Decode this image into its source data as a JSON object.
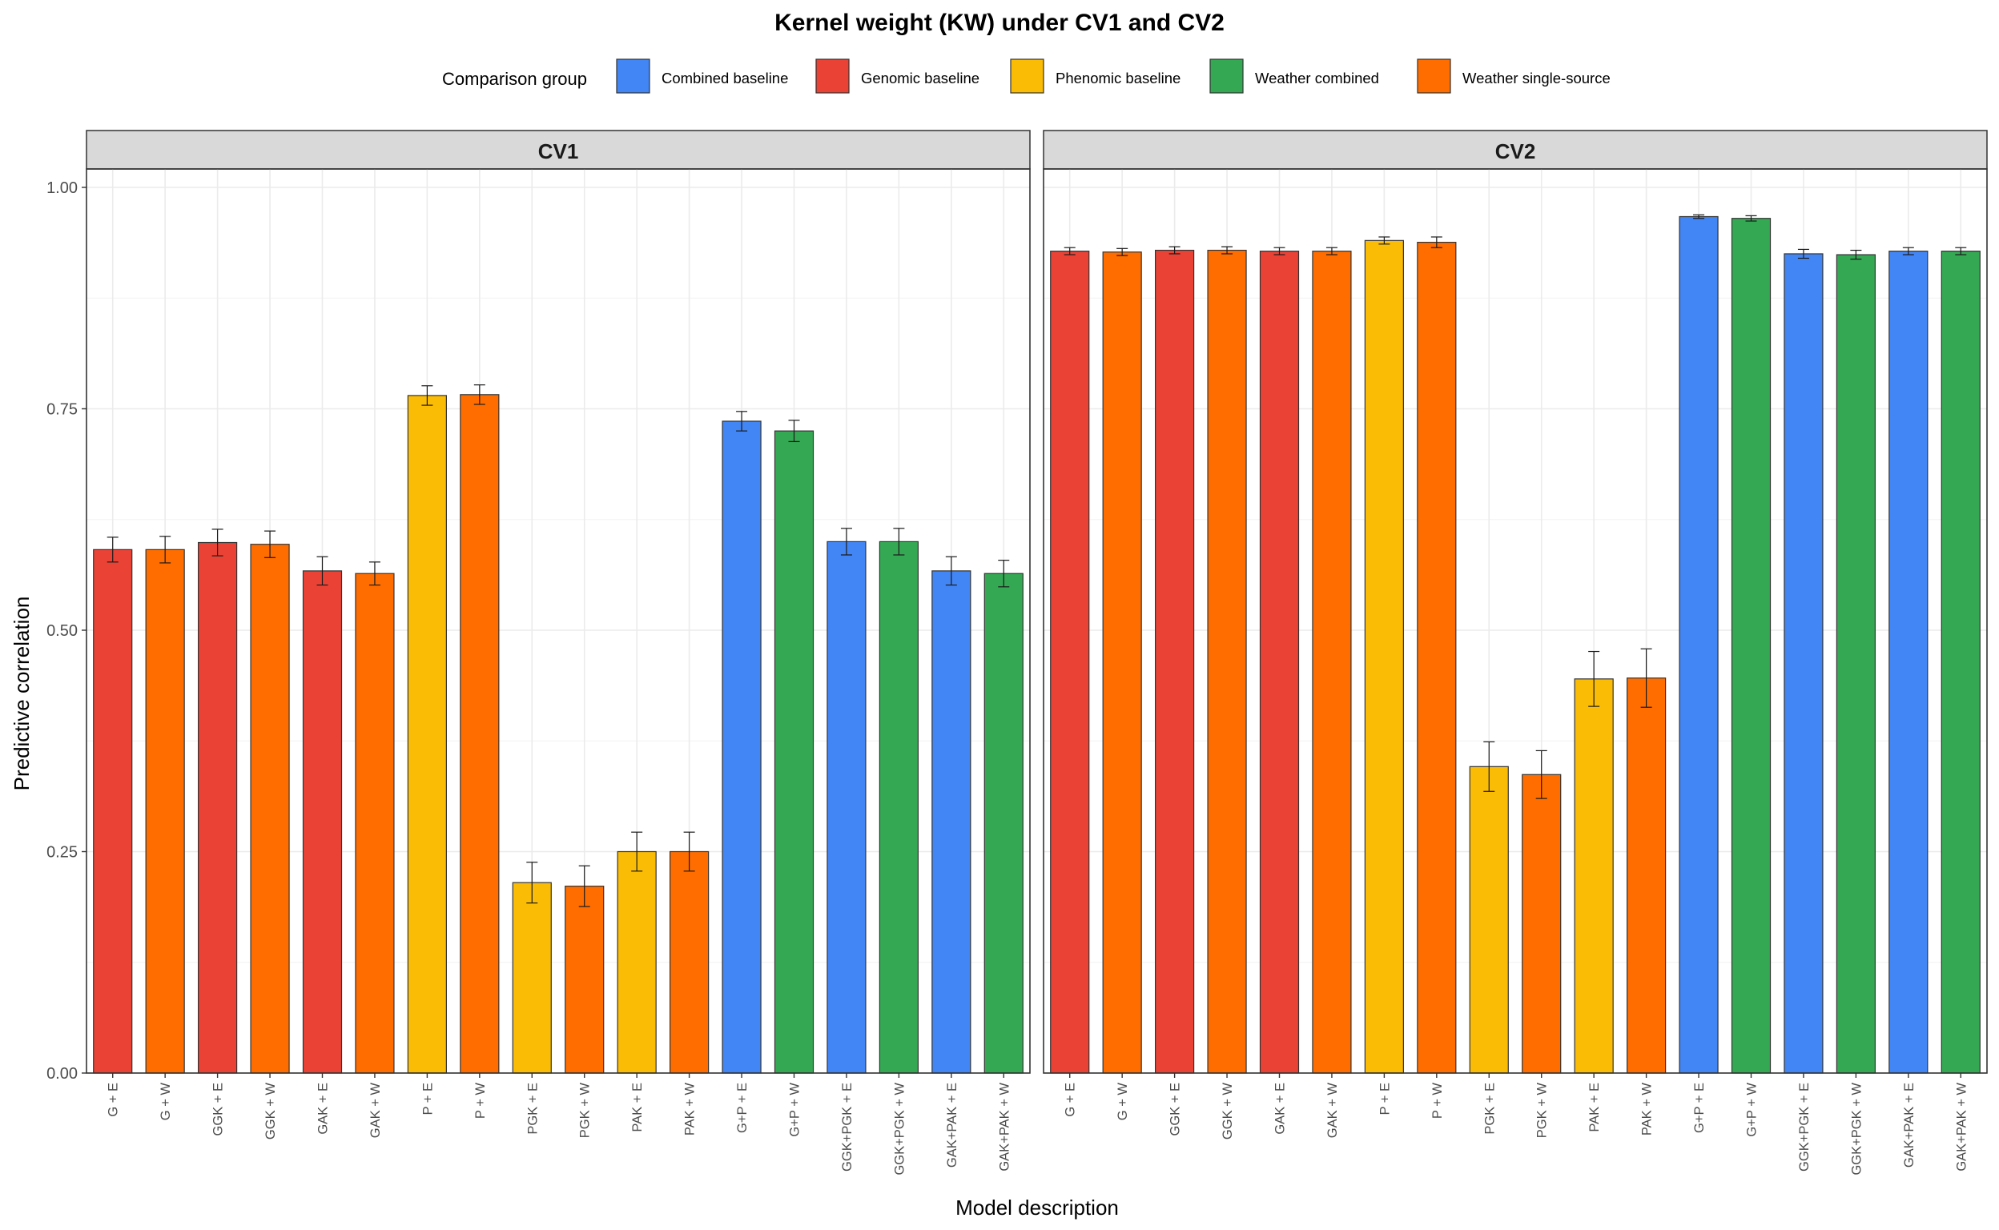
{
  "chart_data": {
    "type": "bar",
    "title": "Kernel weight (KW) under CV1 and CV2",
    "xlabel": "Model description",
    "ylabel": "Predictive correlation",
    "ylim": [
      0,
      1.0
    ],
    "yticks": [
      0.0,
      0.25,
      0.5,
      0.75,
      1.0
    ],
    "ytick_labels": [
      "0.00",
      "0.25",
      "0.50",
      "0.75",
      "1.00"
    ],
    "grid": true,
    "legend": {
      "title": "Comparison group",
      "position": "top",
      "items": [
        {
          "label": "Combined baseline",
          "color": "#4285F4"
        },
        {
          "label": "Genomic baseline",
          "color": "#EA4335"
        },
        {
          "label": "Phenomic baseline",
          "color": "#FBBC05"
        },
        {
          "label": "Weather combined",
          "color": "#34A853"
        },
        {
          "label": "Weather single-source",
          "color": "#FF6D00"
        }
      ]
    },
    "categories": [
      "G + E",
      "G + W",
      "GGK + E",
      "GGK + W",
      "GAK + E",
      "GAK + W",
      "P + E",
      "P + W",
      "PGK + E",
      "PGK + W",
      "PAK + E",
      "PAK + W",
      "G+P + E",
      "G+P + W",
      "GGK+PGK + E",
      "GGK+PGK + W",
      "GAK+PAK + E",
      "GAK+PAK + W"
    ],
    "bar_groups": [
      "Genomic baseline",
      "Weather single-source",
      "Genomic baseline",
      "Weather single-source",
      "Genomic baseline",
      "Weather single-source",
      "Phenomic baseline",
      "Weather single-source",
      "Phenomic baseline",
      "Weather single-source",
      "Phenomic baseline",
      "Weather single-source",
      "Combined baseline",
      "Weather combined",
      "Combined baseline",
      "Weather combined",
      "Combined baseline",
      "Weather combined"
    ],
    "panels": [
      {
        "label": "CV1",
        "values": [
          0.591,
          0.591,
          0.599,
          0.597,
          0.567,
          0.564,
          0.765,
          0.766,
          0.215,
          0.211,
          0.25,
          0.25,
          0.736,
          0.725,
          0.6,
          0.6,
          0.567,
          0.564
        ],
        "errors": [
          0.014,
          0.015,
          0.015,
          0.015,
          0.016,
          0.013,
          0.011,
          0.011,
          0.023,
          0.023,
          0.022,
          0.022,
          0.011,
          0.012,
          0.015,
          0.015,
          0.016,
          0.015
        ]
      },
      {
        "label": "CV2",
        "values": [
          0.928,
          0.927,
          0.929,
          0.929,
          0.928,
          0.928,
          0.94,
          0.938,
          0.346,
          0.337,
          0.445,
          0.446,
          0.967,
          0.965,
          0.925,
          0.924,
          0.928,
          0.928
        ],
        "errors": [
          0.004,
          0.004,
          0.004,
          0.004,
          0.004,
          0.004,
          0.004,
          0.006,
          0.028,
          0.027,
          0.031,
          0.033,
          0.002,
          0.003,
          0.005,
          0.005,
          0.004,
          0.004
        ]
      }
    ]
  }
}
